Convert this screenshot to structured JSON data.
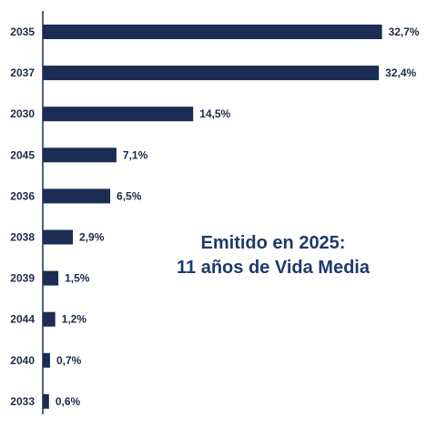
{
  "colors": {
    "bar": "#1b2d54",
    "axis": "#1b2d54",
    "annotation": "#1f3a6b"
  },
  "chart_data": {
    "type": "bar",
    "orientation": "horizontal",
    "categories": [
      "2035",
      "2037",
      "2030",
      "2045",
      "2036",
      "2038",
      "2039",
      "2044",
      "2040",
      "2033"
    ],
    "values": [
      32.7,
      32.4,
      14.5,
      7.1,
      6.5,
      2.9,
      1.5,
      1.2,
      0.7,
      0.6
    ],
    "value_labels": [
      "32,7%",
      "32,4%",
      "14,5%",
      "7,1%",
      "6,5%",
      "2,9%",
      "1,5%",
      "1,2%",
      "0,7%",
      "0,6%"
    ],
    "unit": "%",
    "xlim": [
      0,
      33
    ],
    "grid": false,
    "legend": "none",
    "annotation": {
      "line1": "Emitido en 2025:",
      "line2": "11 años de Vida Media"
    }
  }
}
